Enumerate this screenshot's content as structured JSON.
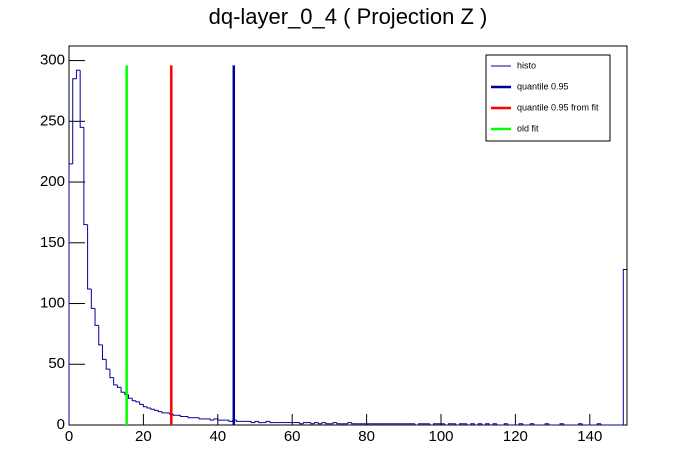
{
  "chart_data": {
    "type": "histogram",
    "title": "dq-layer_0_4 ( Projection Z )",
    "bins": [
      0,
      1,
      2,
      3,
      4,
      5,
      6,
      7,
      8,
      9,
      10,
      11,
      12,
      13,
      14,
      15,
      16,
      17,
      18,
      19,
      20,
      21,
      22,
      23,
      24,
      25,
      26,
      27,
      28,
      29,
      30,
      31,
      32,
      33,
      34,
      35,
      36,
      37,
      38,
      39,
      40,
      41,
      42,
      43,
      44,
      45,
      46,
      47,
      48,
      49,
      50,
      51,
      52,
      53,
      54,
      55,
      56,
      57,
      58,
      59,
      60,
      61,
      62,
      63,
      64,
      65,
      66,
      67,
      68,
      69,
      70,
      71,
      72,
      73,
      74,
      75,
      76,
      77,
      78,
      79,
      80,
      81,
      82,
      83,
      84,
      85,
      86,
      87,
      88,
      89,
      90,
      91,
      92,
      93,
      94,
      95,
      96,
      97,
      98,
      99,
      100,
      101,
      102,
      103,
      104,
      105,
      106,
      107,
      108,
      109,
      110,
      111,
      112,
      113,
      114,
      115,
      116,
      117,
      118,
      119,
      120,
      121,
      122,
      123,
      124,
      125,
      126,
      127,
      128,
      129,
      130,
      131,
      132,
      133,
      134,
      135,
      136,
      137,
      138,
      139,
      140,
      141,
      142,
      143,
      144,
      145,
      146,
      147,
      148,
      149,
      150
    ],
    "series": [
      {
        "name": "histo",
        "color": "#000099",
        "values": [
          215,
          285,
          292,
          245,
          165,
          112,
          96,
          82,
          66,
          54,
          46,
          39,
          33,
          31,
          27,
          25,
          22,
          20,
          19,
          17,
          15,
          14,
          13,
          12,
          11,
          10,
          10,
          9,
          8,
          8,
          7,
          7,
          6,
          6,
          6,
          5,
          5,
          5,
          4,
          5,
          4,
          4,
          4,
          3,
          4,
          3,
          3,
          3,
          3,
          2,
          3,
          2,
          2,
          3,
          2,
          2,
          2,
          2,
          2,
          2,
          2,
          2,
          1,
          2,
          2,
          1,
          2,
          1,
          2,
          1,
          1,
          2,
          1,
          1,
          1,
          2,
          1,
          1,
          1,
          1,
          1,
          1,
          1,
          1,
          1,
          1,
          1,
          1,
          1,
          1,
          1,
          1,
          1,
          0,
          1,
          1,
          1,
          0,
          1,
          1,
          1,
          0,
          1,
          1,
          0,
          1,
          1,
          0,
          1,
          0,
          1,
          0,
          1,
          0,
          1,
          0,
          0,
          1,
          0,
          0,
          0,
          1,
          0,
          0,
          1,
          0,
          0,
          0,
          1,
          0,
          0,
          0,
          1,
          0,
          0,
          0,
          0,
          1,
          0,
          0,
          0,
          0,
          1,
          0,
          0,
          0,
          0,
          0,
          0,
          128
        ]
      }
    ],
    "lines": [
      {
        "name": "quantile 0.95",
        "color": "#000099",
        "x": 44.3,
        "top": 296
      },
      {
        "name": "quantile 0.95 from fit",
        "color": "#ff0000",
        "x": 27.5,
        "top": 296
      },
      {
        "name": "old fit",
        "color": "#00ff00",
        "x": 15.5,
        "top": 296
      }
    ],
    "xlim": [
      0,
      150
    ],
    "xticks": [
      0,
      20,
      40,
      60,
      80,
      100,
      120,
      140
    ],
    "ylim": [
      0,
      312
    ],
    "yticks": [
      0,
      50,
      100,
      150,
      200,
      250,
      300
    ],
    "legend": "top-right"
  }
}
